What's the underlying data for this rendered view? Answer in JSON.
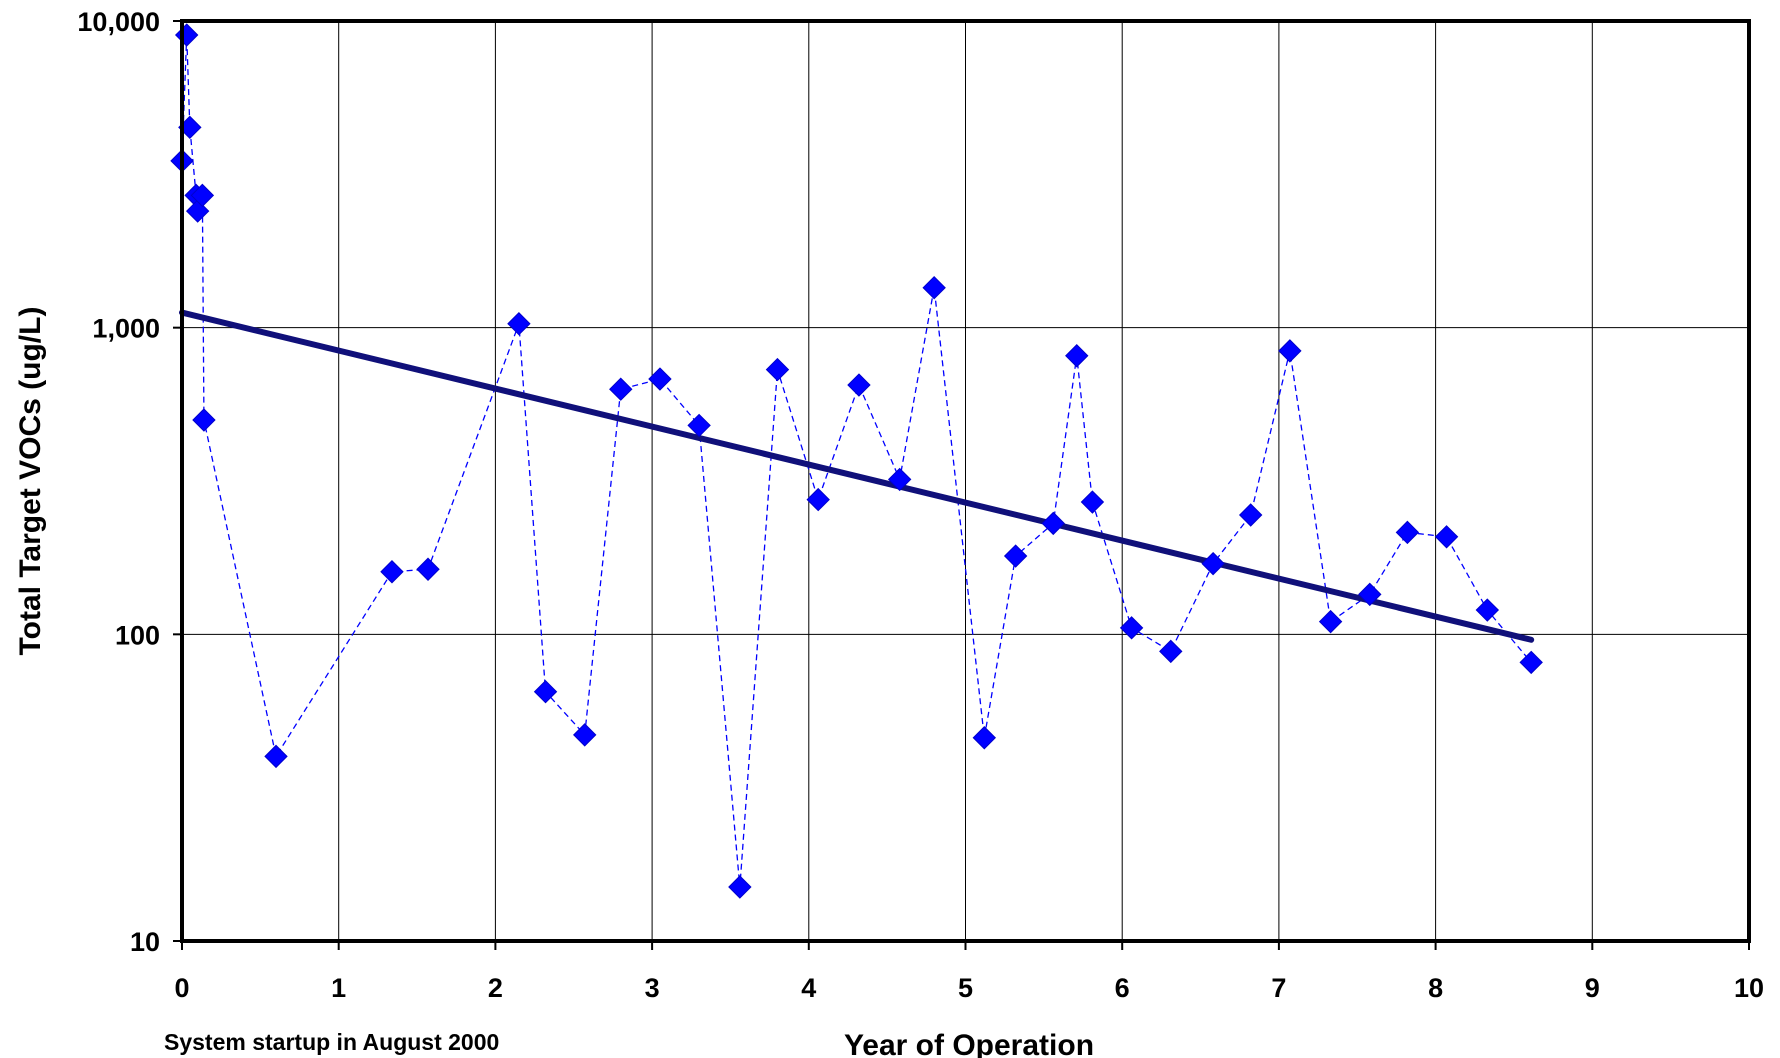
{
  "chart_data": {
    "type": "scatter",
    "xlabel": "Year of Operation",
    "ylabel": "Total Target VOCs (ug/L)",
    "annotation": "System startup in August 2000",
    "xlim": [
      0,
      10
    ],
    "ylim": [
      10,
      10000
    ],
    "yscale": "log",
    "grid": true,
    "x_ticks": [
      "0",
      "1",
      "2",
      "3",
      "4",
      "5",
      "6",
      "7",
      "8",
      "9",
      "10"
    ],
    "y_ticks": [
      "10",
      "100",
      "1,000",
      "10,000"
    ],
    "series": [
      {
        "marker": "diamond",
        "line": "dashed",
        "color": "#0000ff",
        "points": [
          [
            0.0,
            3500
          ],
          [
            0.03,
            9000
          ],
          [
            0.05,
            4500
          ],
          [
            0.09,
            2700
          ],
          [
            0.1,
            2400
          ],
          [
            0.13,
            2700
          ],
          [
            0.14,
            500
          ],
          [
            0.6,
            40
          ],
          [
            1.34,
            160
          ],
          [
            1.57,
            163
          ],
          [
            2.15,
            1030
          ],
          [
            2.32,
            65
          ],
          [
            2.57,
            47
          ],
          [
            2.8,
            630
          ],
          [
            3.05,
            680
          ],
          [
            3.3,
            480
          ],
          [
            3.56,
            15
          ],
          [
            3.8,
            730
          ],
          [
            4.06,
            275
          ],
          [
            4.32,
            650
          ],
          [
            4.58,
            320
          ],
          [
            4.8,
            1350
          ],
          [
            5.12,
            46
          ],
          [
            5.32,
            180
          ],
          [
            5.56,
            230
          ],
          [
            5.71,
            810
          ],
          [
            5.81,
            270
          ],
          [
            6.06,
            105
          ],
          [
            6.31,
            88
          ],
          [
            6.58,
            170
          ],
          [
            6.82,
            245
          ],
          [
            7.07,
            840
          ],
          [
            7.33,
            110
          ],
          [
            7.58,
            135
          ],
          [
            7.82,
            215
          ],
          [
            8.07,
            208
          ],
          [
            8.33,
            120
          ],
          [
            8.61,
            81
          ]
        ]
      },
      {
        "line": "solid",
        "color": "#10107a",
        "trendline": true,
        "points": [
          [
            0.0,
            1120
          ],
          [
            8.61,
            96
          ]
        ]
      }
    ]
  }
}
